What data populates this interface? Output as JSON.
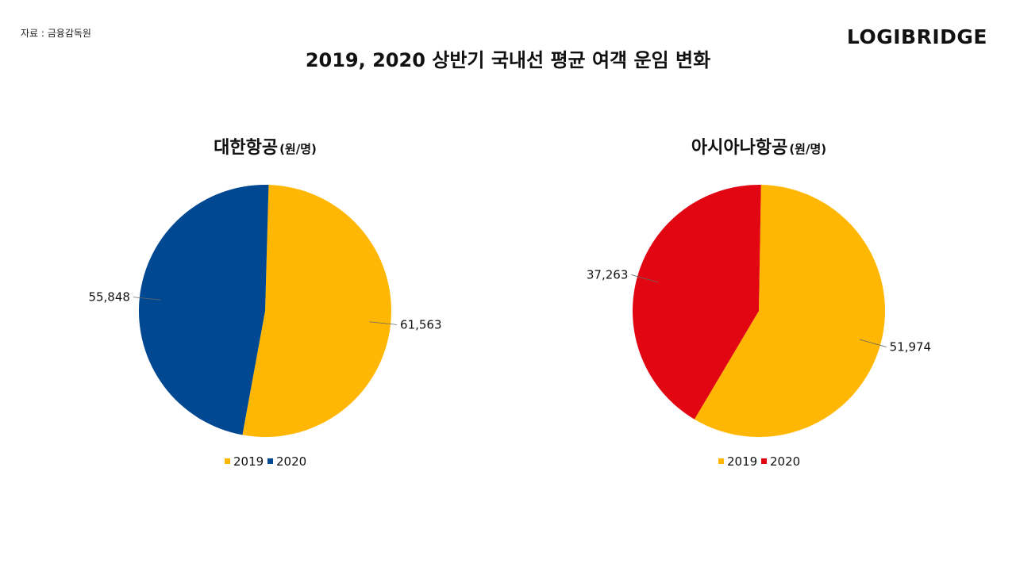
{
  "header": {
    "source": "자료 : 금융감독원",
    "logo": "LOGIBRIDGE",
    "title": "2019, 2020 상반기 국내선 평균 여객 운임 변화"
  },
  "colors": {
    "y2019": "#FFB703",
    "korean_2020": "#004892",
    "asiana_2020": "#E20612"
  },
  "chart_data": [
    {
      "type": "pie",
      "title": "대한항공",
      "unit": "(원/명)",
      "categories": [
        "2019",
        "2020"
      ],
      "values": [
        61563,
        55848
      ],
      "labels": [
        "61,563",
        "55,848"
      ],
      "colors": [
        "#FFB703",
        "#004892"
      ],
      "legend": [
        "2019",
        "2020"
      ]
    },
    {
      "type": "pie",
      "title": "아시아나항공",
      "unit": "(원/명)",
      "categories": [
        "2019",
        "2020"
      ],
      "values": [
        51974,
        37263
      ],
      "labels": [
        "51,974",
        "37,263"
      ],
      "colors": [
        "#FFB703",
        "#E20612"
      ],
      "legend": [
        "2019",
        "2020"
      ]
    }
  ]
}
